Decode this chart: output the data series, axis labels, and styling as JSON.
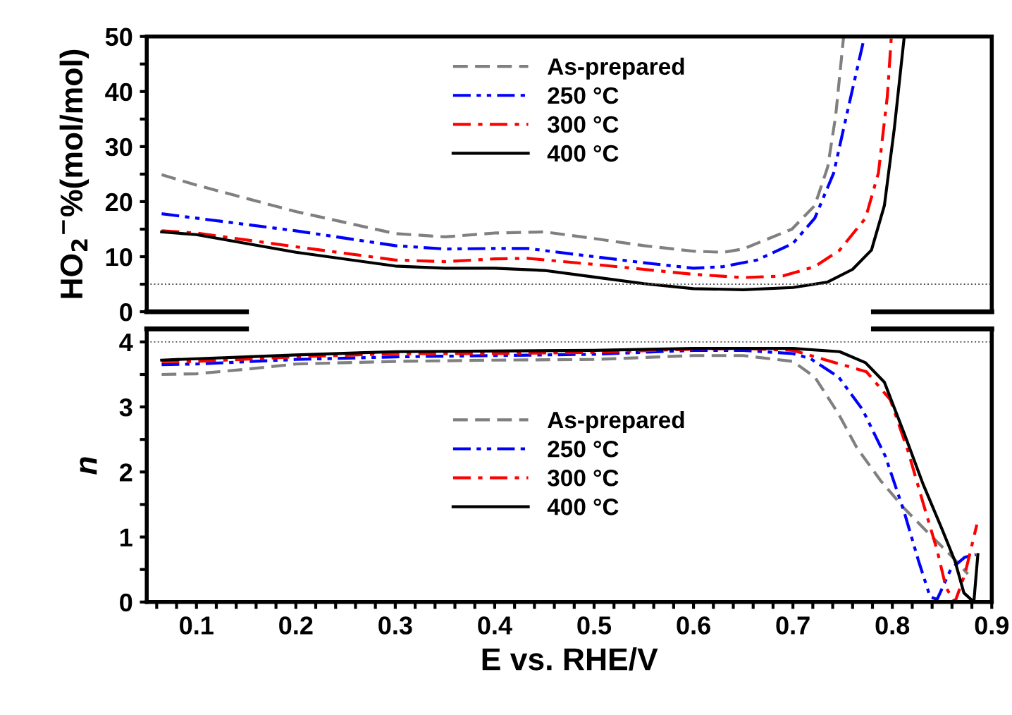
{
  "chart_data": [
    {
      "type": "line",
      "ylabel": "HO$_{2}$$^{−}$%(mol/mol)",
      "xlim": [
        0.05,
        0.9
      ],
      "ylim": [
        0,
        50
      ],
      "yticks": [
        0,
        {
          "value": 5,
          "label": null
        },
        10,
        {
          "value": 15,
          "label": null
        },
        20,
        {
          "value": 25,
          "label": null
        },
        30,
        {
          "value": 35,
          "label": null
        },
        40,
        {
          "value": 45,
          "label": null
        },
        50
      ],
      "tick_labels": "y",
      "legend": "top",
      "grid": false,
      "marker": "none",
      "ref_lines": [
        {
          "axis": "y",
          "value": 5,
          "line_style": "dotted",
          "color": "#555555"
        }
      ],
      "series": [
        {
          "name": "As-prepared",
          "color": "#808080",
          "line_style": "dashed",
          "x": [
            0.065,
            0.1,
            0.2,
            0.3,
            0.35,
            0.4,
            0.45,
            0.5,
            0.55,
            0.6,
            0.63,
            0.65,
            0.699,
            0.722,
            0.735,
            0.743,
            0.751
          ],
          "values": [
            24.9,
            23,
            18.2,
            14.2,
            13.6,
            14.3,
            14.5,
            13.3,
            12,
            11,
            10.8,
            11.4,
            15.0,
            19.3,
            26.3,
            35.6,
            50
          ]
        },
        {
          "name": "250 °C",
          "color": "#0000ff",
          "line_style": "dashdotdot",
          "x": [
            0.065,
            0.1,
            0.2,
            0.3,
            0.35,
            0.4,
            0.433,
            0.5,
            0.55,
            0.6,
            0.63,
            0.664,
            0.7,
            0.722,
            0.741,
            0.754,
            0.772
          ],
          "values": [
            17.8,
            17,
            14.7,
            12,
            11.4,
            11.5,
            11.5,
            10,
            8.9,
            7.9,
            8.2,
            9.4,
            12.4,
            17,
            25.2,
            35.7,
            50
          ]
        },
        {
          "name": "300 °C",
          "color": "#ff0000",
          "line_style": "dashdot",
          "x": [
            0.065,
            0.1,
            0.2,
            0.3,
            0.35,
            0.4,
            0.433,
            0.5,
            0.55,
            0.6,
            0.65,
            0.69,
            0.722,
            0.747,
            0.773,
            0.786,
            0.795,
            0.799
          ],
          "values": [
            14.7,
            14.3,
            11.8,
            9.4,
            9.1,
            9.6,
            9.7,
            8.6,
            7.7,
            6.8,
            6.2,
            6.5,
            8.2,
            11.2,
            17,
            25.2,
            39.2,
            50
          ]
        },
        {
          "name": "400 °C",
          "color": "#000000",
          "line_style": "solid",
          "x": [
            0.065,
            0.1,
            0.2,
            0.3,
            0.35,
            0.4,
            0.45,
            0.5,
            0.55,
            0.6,
            0.65,
            0.7,
            0.735,
            0.76,
            0.779,
            0.792,
            0.802,
            0.812
          ],
          "values": [
            14.5,
            14,
            10.8,
            8.3,
            7.9,
            7.9,
            7.5,
            6.3,
            5.1,
            4.2,
            4.0,
            4.4,
            5.4,
            7.7,
            11.2,
            19.3,
            33.3,
            50
          ]
        }
      ]
    },
    {
      "type": "line",
      "xlabel": "E vs. RHE/V",
      "ylabel": "n",
      "xlim": [
        0.05,
        0.9
      ],
      "ylim": [
        0,
        4.2
      ],
      "xticks": [
        {
          "value": 0.06,
          "label": null
        },
        {
          "value": 0.08,
          "label": null
        },
        {
          "value": 0.1,
          "label": "0.1"
        },
        {
          "value": 0.12,
          "label": null
        },
        {
          "value": 0.14,
          "label": null
        },
        {
          "value": 0.16,
          "label": null
        },
        {
          "value": 0.18,
          "label": null
        },
        {
          "value": 0.2,
          "label": "0.2"
        },
        {
          "value": 0.22,
          "label": null
        },
        {
          "value": 0.24,
          "label": null
        },
        {
          "value": 0.26,
          "label": null
        },
        {
          "value": 0.28,
          "label": null
        },
        {
          "value": 0.3,
          "label": "0.3"
        },
        {
          "value": 0.32,
          "label": null
        },
        {
          "value": 0.34,
          "label": null
        },
        {
          "value": 0.36,
          "label": null
        },
        {
          "value": 0.38,
          "label": null
        },
        {
          "value": 0.4,
          "label": "0.4"
        },
        {
          "value": 0.42,
          "label": null
        },
        {
          "value": 0.44,
          "label": null
        },
        {
          "value": 0.46,
          "label": null
        },
        {
          "value": 0.48,
          "label": null
        },
        {
          "value": 0.5,
          "label": "0.5"
        },
        {
          "value": 0.52,
          "label": null
        },
        {
          "value": 0.54,
          "label": null
        },
        {
          "value": 0.56,
          "label": null
        },
        {
          "value": 0.58,
          "label": null
        },
        {
          "value": 0.6,
          "label": "0.6"
        },
        {
          "value": 0.62,
          "label": null
        },
        {
          "value": 0.64,
          "label": null
        },
        {
          "value": 0.66,
          "label": null
        },
        {
          "value": 0.68,
          "label": null
        },
        {
          "value": 0.7,
          "label": "0.7"
        },
        {
          "value": 0.72,
          "label": null
        },
        {
          "value": 0.74,
          "label": null
        },
        {
          "value": 0.76,
          "label": null
        },
        {
          "value": 0.78,
          "label": null
        },
        {
          "value": 0.8,
          "label": "0.8"
        },
        {
          "value": 0.82,
          "label": null
        },
        {
          "value": 0.84,
          "label": null
        },
        {
          "value": 0.86,
          "label": null
        },
        {
          "value": 0.88,
          "label": null
        },
        {
          "value": 0.9,
          "label": "0.9"
        }
      ],
      "yticks": [
        0,
        {
          "value": 0.5,
          "label": null
        },
        1,
        {
          "value": 1.5,
          "label": null
        },
        2,
        {
          "value": 2.5,
          "label": null
        },
        3,
        {
          "value": 3.5,
          "label": null
        },
        4
      ],
      "legend": "center",
      "grid": false,
      "marker": "none",
      "ref_lines": [
        {
          "axis": "y",
          "value": 4,
          "line_style": "dotted",
          "color": "#555555"
        }
      ],
      "series": [
        {
          "name": "As-prepared",
          "color": "#808080",
          "line_style": "dashed",
          "x": [
            0.065,
            0.1,
            0.15,
            0.2,
            0.3,
            0.4,
            0.5,
            0.6,
            0.65,
            0.7,
            0.722,
            0.746,
            0.764,
            0.788,
            0.812,
            0.835,
            0.858,
            0.876
          ],
          "values": [
            3.5,
            3.51,
            3.58,
            3.66,
            3.7,
            3.72,
            3.73,
            3.79,
            3.79,
            3.7,
            3.46,
            2.89,
            2.38,
            1.87,
            1.44,
            1.08,
            0.73,
            0.43
          ]
        },
        {
          "name": "250 °C",
          "color": "#0000ff",
          "line_style": "dashdotdot",
          "x": [
            0.065,
            0.1,
            0.2,
            0.3,
            0.4,
            0.5,
            0.6,
            0.65,
            0.7,
            0.718,
            0.746,
            0.77,
            0.793,
            0.812,
            0.826,
            0.838,
            0.845,
            0.859,
            0.873,
            0.884
          ],
          "values": [
            3.65,
            3.66,
            3.73,
            3.77,
            3.79,
            3.81,
            3.87,
            3.87,
            3.82,
            3.74,
            3.46,
            2.96,
            2.24,
            1.38,
            0.65,
            0.08,
            0.04,
            0.51,
            0.69,
            0.73
          ]
        },
        {
          "name": "300 °C",
          "color": "#ff0000",
          "line_style": "dashdot",
          "x": [
            0.065,
            0.1,
            0.2,
            0.3,
            0.4,
            0.5,
            0.6,
            0.65,
            0.7,
            0.718,
            0.774,
            0.798,
            0.816,
            0.831,
            0.845,
            0.854,
            0.863,
            0.873,
            0.885
          ],
          "values": [
            3.7,
            3.7,
            3.77,
            3.82,
            3.82,
            3.84,
            3.89,
            3.9,
            3.87,
            3.79,
            3.54,
            3.11,
            2.31,
            1.52,
            0.8,
            0.22,
            0,
            0.43,
            1.19
          ]
        },
        {
          "name": "400 °C",
          "color": "#000000",
          "line_style": "solid",
          "x": [
            0.065,
            0.2,
            0.3,
            0.5,
            0.6,
            0.7,
            0.747,
            0.773,
            0.792,
            0.812,
            0.831,
            0.85,
            0.863,
            0.872,
            0.882,
            0.886
          ],
          "values": [
            3.72,
            3.8,
            3.85,
            3.87,
            3.9,
            3.9,
            3.85,
            3.68,
            3.38,
            2.59,
            1.81,
            1.12,
            0.63,
            0.14,
            0,
            0.73
          ]
        }
      ]
    }
  ]
}
